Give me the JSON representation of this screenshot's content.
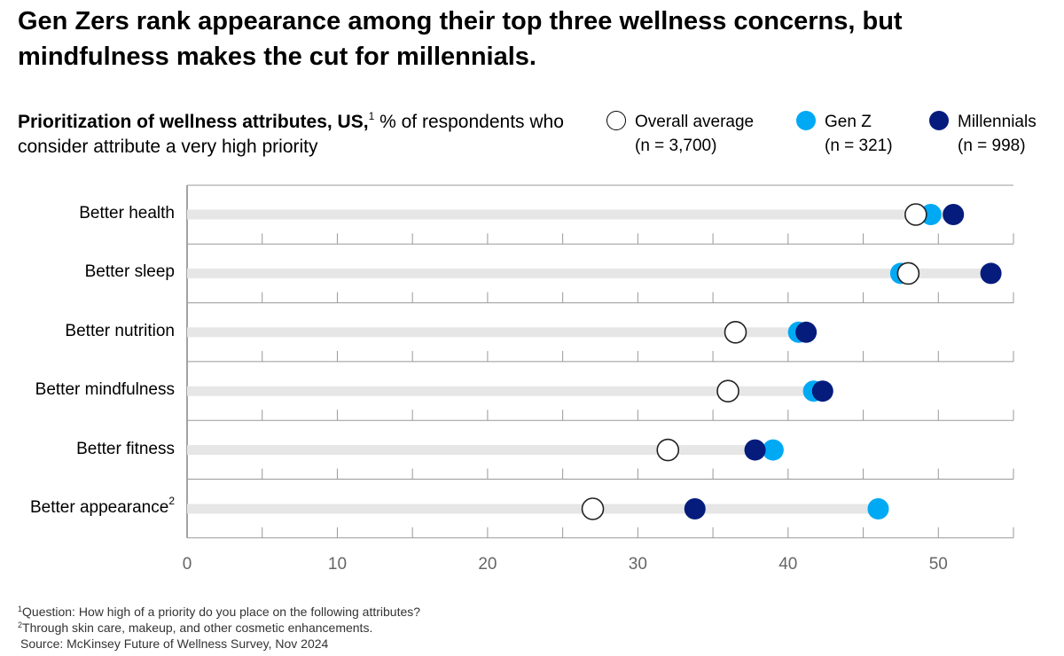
{
  "title": "Gen Zers rank appearance among their top three wellness concerns, but mindfulness makes the cut for millennials.",
  "subtitle": {
    "bold": "Prioritization of wellness attributes, US,",
    "sup": "1",
    "rest": " % of respondents who consider attribute a very high priority"
  },
  "legend": [
    {
      "name": "Overall average",
      "n": "(n = 3,700)"
    },
    {
      "name": "Gen Z",
      "n": "(n = 321)"
    },
    {
      "name": "Millennials",
      "n": "(n = 998)"
    }
  ],
  "colors": {
    "overall": "#ffffff",
    "genz": "#00a9f4",
    "millennials": "#051c7c",
    "track": "#e6e6e6",
    "axis": "#666666"
  },
  "chart_data": {
    "type": "scatter",
    "categories": [
      "Better health",
      "Better sleep",
      "Better nutrition",
      "Better mindfulness",
      "Better fitness",
      "Better appearance"
    ],
    "category_sups": [
      "",
      "",
      "",
      "",
      "",
      "2"
    ],
    "series": [
      {
        "name": "Overall average",
        "values": [
          48.5,
          48,
          36.5,
          36,
          32,
          27
        ]
      },
      {
        "name": "Gen Z",
        "values": [
          49.5,
          47.5,
          40.7,
          41.7,
          39,
          46
        ]
      },
      {
        "name": "Millennials",
        "values": [
          51,
          53.5,
          41.2,
          42.3,
          37.8,
          33.8
        ]
      }
    ],
    "xlim": [
      0,
      55
    ],
    "xticks": [
      0,
      10,
      20,
      30,
      40,
      50
    ]
  },
  "footnotes": {
    "f1": {
      "sup": "1",
      "text": "Question: How high of a priority do you place on the following attributes?"
    },
    "f2": {
      "sup": "2",
      "text": "Through skin care, makeup, and other cosmetic enhancements."
    },
    "source": "Source: McKinsey Future of Wellness Survey, Nov 2024"
  }
}
